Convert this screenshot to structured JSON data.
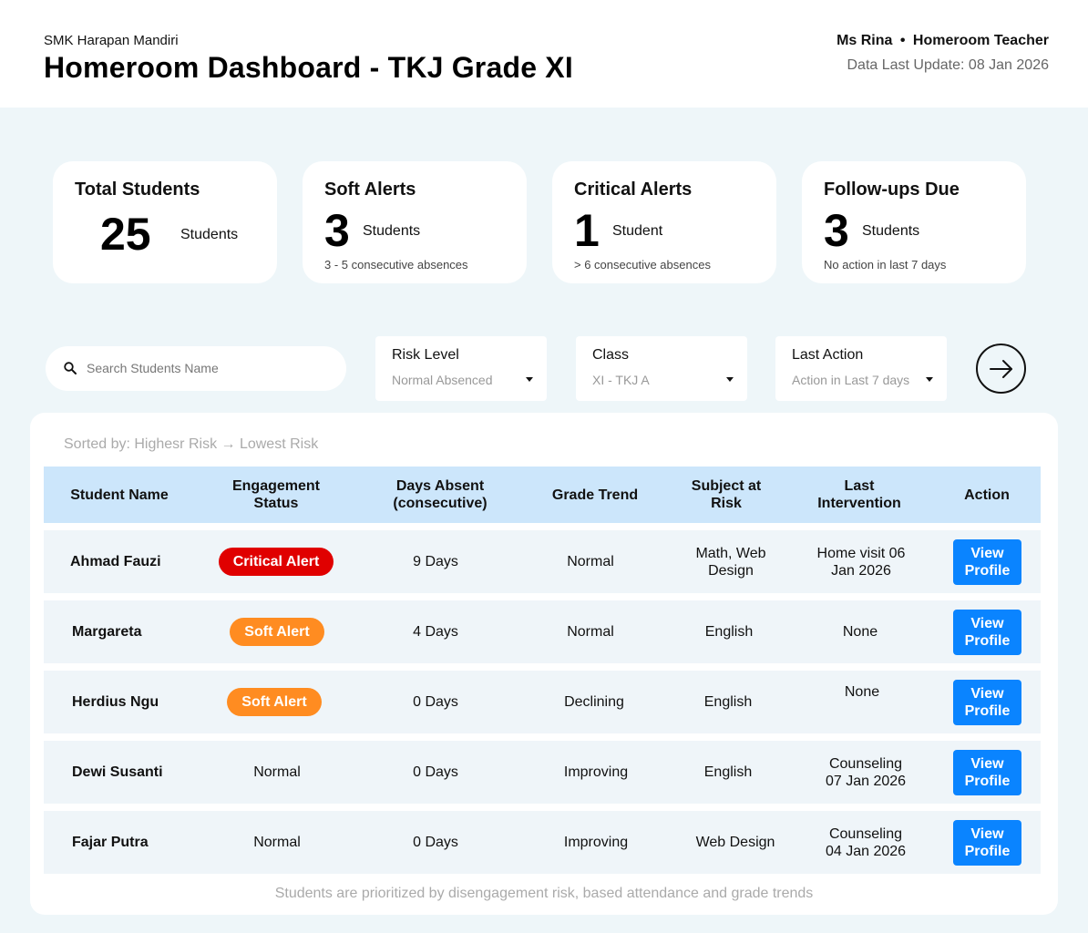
{
  "header": {
    "school": "SMK Harapan Mandiri",
    "title": "Homeroom Dashboard - TKJ Grade XI",
    "teacher_name": "Ms Rina",
    "separator": "•",
    "teacher_role": "Homeroom Teacher",
    "last_update": "Data Last Update: 08 Jan 2026"
  },
  "stats": [
    {
      "title": "Total Students",
      "value": "25",
      "unit": "Students",
      "note": ""
    },
    {
      "title": "Soft Alerts",
      "value": "3",
      "unit": "Students",
      "note": "3 - 5 consecutive absences"
    },
    {
      "title": "Critical Alerts",
      "value": "1",
      "unit": "Student",
      "note": "> 6 consecutive absences"
    },
    {
      "title": "Follow-ups Due",
      "value": "3",
      "unit": "Students",
      "note": "No action in last 7 days"
    }
  ],
  "search": {
    "placeholder": "Search Students Name",
    "icon": "search-icon"
  },
  "filters": [
    {
      "label": "Risk Level",
      "value": "Normal Absenced"
    },
    {
      "label": "Class",
      "value": "XI - TKJ A"
    },
    {
      "label": "Last Action",
      "value": "Action in Last 7 days"
    }
  ],
  "go_button_icon": "arrow-right-icon",
  "table": {
    "sorted_label": "Sorted by: Highesr Risk → Lowest Risk",
    "columns": [
      "Student Name",
      "Engagement Status",
      "Days Absent (consecutive)",
      "Grade Trend",
      "Subject at Risk",
      "Last Intervention",
      "Action"
    ],
    "rows": [
      {
        "name": "Ahmad Fauzi",
        "status": "Critical Alert",
        "days": "9 Days",
        "trend": "Normal",
        "subject": "Math, Web Design",
        "intervention": "Home visit 06 Jan 2026",
        "action": "View Profile"
      },
      {
        "name": "Margareta",
        "status": "Soft Alert",
        "days": "4 Days",
        "trend": "Normal",
        "subject": "English",
        "intervention": "None",
        "action": "View Profile"
      },
      {
        "name": "Herdius Ngu",
        "status": "Soft Alert",
        "days": "0 Days",
        "trend": "Declining",
        "subject": "English",
        "intervention": "None",
        "action": "View Profile"
      },
      {
        "name": "Dewi Susanti",
        "status": "Normal",
        "days": "0 Days",
        "trend": "Improving",
        "subject": "English",
        "intervention": "Counseling 07 Jan 2026",
        "action": "View Profile"
      },
      {
        "name": "Fajar Putra",
        "status": "Normal",
        "days": "0 Days",
        "trend": "Improving",
        "subject": "Web Design",
        "intervention": "Counseling 04 Jan 2026",
        "action": "View Profile"
      }
    ],
    "footnote": "Students are prioritized by disengagement risk, based attendance and grade trends"
  },
  "colors": {
    "background": "#eef6f9",
    "header_row": "#cce6fb",
    "critical": "#e00000",
    "soft": "#ff8c21",
    "button": "#0a84ff"
  }
}
